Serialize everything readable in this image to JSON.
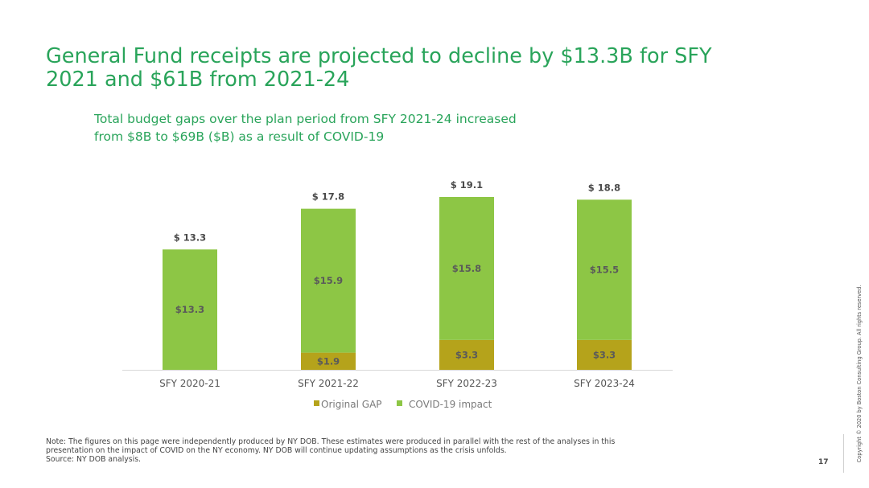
{
  "page": {
    "title": "General Fund receipts are projected to decline by $13.3B for SFY 2021 and $61B from 2021-24",
    "subtitle": "Total budget gaps over the plan period from SFY 2021-24 increased from $8B to $69B ($B) as a result of COVID-19",
    "note_lines": [
      "Note: The figures on this page were independently produced by NY DOB. These estimates were produced in parallel with the rest of the analyses in this",
      "presentation on the impact of COVID on the NY economy. NY DOB will continue updating assumptions as the crisis unfolds.",
      "Source: NY DOB analysis."
    ],
    "page_number": "17",
    "copyright": "Copyright © 2020 by Boston Consulting Group. All rights reserved."
  },
  "colors": {
    "title": "#29a45a",
    "covid": "#8dc645",
    "original_gap": "#b5a31b",
    "label_text": "#5a5a5a",
    "legend_text": "#7a7a7a"
  },
  "chart_data": {
    "type": "bar",
    "stacked": true,
    "categories": [
      "SFY 2020-21",
      "SFY 2021-22",
      "SFY 2022-23",
      "SFY 2023-24"
    ],
    "series": [
      {
        "name": "Original GAP",
        "values": [
          0,
          1.9,
          3.3,
          3.3
        ],
        "labels": [
          "",
          "$1.9",
          "$3.3",
          "$3.3"
        ]
      },
      {
        "name": "COVID-19 impact",
        "values": [
          13.3,
          15.9,
          15.8,
          15.5
        ],
        "labels": [
          "$13.3",
          "$15.9",
          "$15.8",
          "$15.5"
        ]
      }
    ],
    "totals": [
      13.3,
      17.8,
      19.1,
      18.8
    ],
    "total_labels": [
      "$ 13.3",
      "$ 17.8",
      "$ 19.1",
      "$ 18.8"
    ],
    "legend_position": "bottom",
    "grid": false,
    "ylim": [
      0,
      19.1
    ]
  }
}
